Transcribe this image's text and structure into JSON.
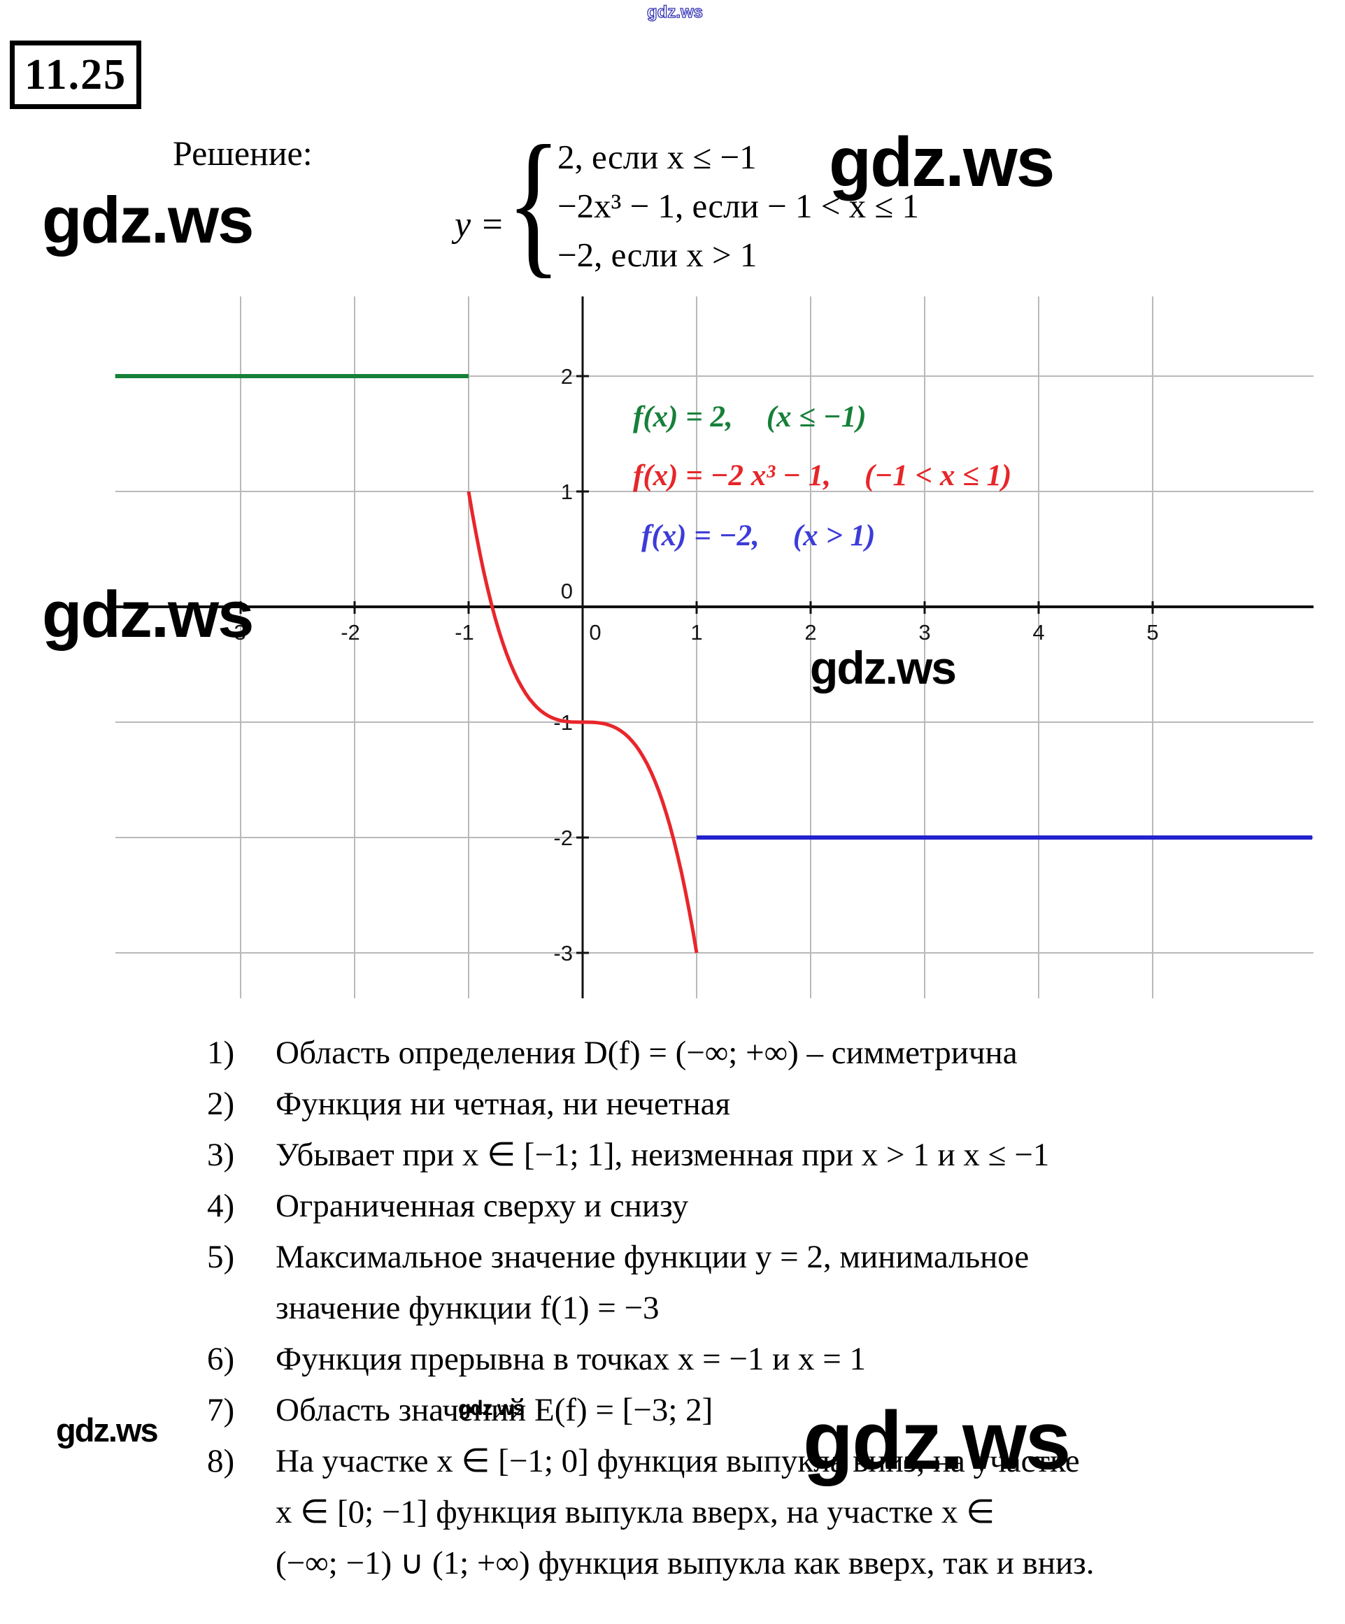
{
  "problem_number": "11.25",
  "solution_label": "Решение:",
  "watermark_text": "gdz.ws",
  "formula": {
    "lhs": "y =",
    "brace": "{",
    "cases": [
      "2, если x ≤ −1",
      "−2x³ − 1, если − 1 < x ≤ 1",
      "−2, если x > 1"
    ]
  },
  "chart_data": {
    "type": "line",
    "title": "",
    "xlabel": "",
    "ylabel": "",
    "x_range": [
      -4.1,
      6.4
    ],
    "y_range": [
      -3.4,
      2.7
    ],
    "x_ticks": [
      -3,
      -2,
      -1,
      0,
      1,
      2,
      3,
      4,
      5
    ],
    "y_ticks": [
      2,
      1,
      0,
      -1,
      -2,
      -3
    ],
    "grid": true,
    "grid_color": "#b9b9b9",
    "axis_color": "#111111",
    "series": [
      {
        "name": "f(x) = 2, (x ≤ −1)",
        "type": "hline",
        "y": 2,
        "x_from": -4.1,
        "x_to": -1,
        "color": "#17813a"
      },
      {
        "name": "f(x) = −2x³ − 1, (−1 < x ≤ 1)",
        "type": "cubic",
        "a": -2,
        "d": -1,
        "x_from": -1,
        "x_to": 1,
        "color": "#e8262b",
        "points": [
          [
            -1,
            1
          ],
          [
            0,
            -1
          ],
          [
            1,
            -3
          ]
        ]
      },
      {
        "name": "f(x) = −2, (x > 1)",
        "type": "hline",
        "y": -2,
        "x_from": 1,
        "x_to": 6.4,
        "color": "#2323cc"
      }
    ],
    "legend_position": "inside upper right",
    "legend": [
      {
        "label": "f(x) = 2,",
        "cond": "(x ≤ −1)",
        "color": "#168039"
      },
      {
        "label": "f(x) = −2 x³ − 1,",
        "cond": "(−1 < x ≤ 1)",
        "color": "#e62629"
      },
      {
        "label": "f(x) = −2,",
        "cond": "(x > 1)",
        "color": "#3c3cd9"
      }
    ]
  },
  "solution_items": [
    {
      "num": "1)",
      "lines": [
        "Область определения D(f) = (−∞; +∞) – симметрична"
      ]
    },
    {
      "num": "2)",
      "lines": [
        "Функция ни четная, ни нечетная"
      ]
    },
    {
      "num": "3)",
      "lines": [
        "Убывает при x ∈ [−1; 1], неизменная при x > 1 и x ≤ −1"
      ]
    },
    {
      "num": "4)",
      "lines": [
        "Ограниченная сверху и снизу"
      ]
    },
    {
      "num": "5)",
      "lines": [
        "Максимальное значение функции y = 2, минимальное",
        "значение функции f(1) = −3"
      ]
    },
    {
      "num": "6)",
      "lines": [
        "Функция прерывна в точках x = −1 и x = 1"
      ]
    },
    {
      "num": "7)",
      "lines": [
        "Область значений E(f) = [−3; 2]"
      ]
    },
    {
      "num": "8)",
      "lines": [
        "На участке x ∈ [−1; 0] функция выпукла вниз, на участке",
        "x ∈ [0; −1] функция выпукла вверх, на участке x ∈",
        "(−∞; −1) ∪ (1; +∞) функция выпукла как вверх, так и вниз."
      ]
    }
  ]
}
